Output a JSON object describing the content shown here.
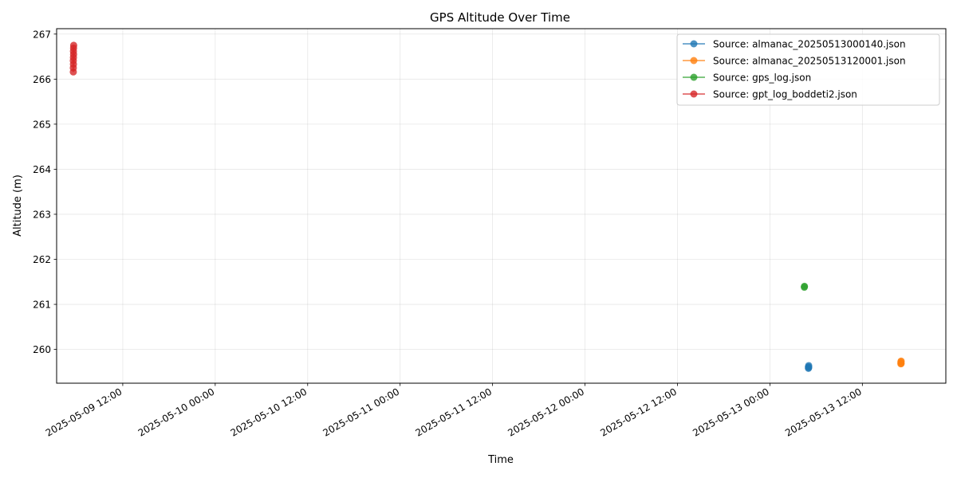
{
  "chart_data": {
    "type": "scatter",
    "title": "GPS Altitude Over Time",
    "xlabel": "Time",
    "ylabel": "Altitude (m)",
    "grid": true,
    "legend_position": "top-right",
    "xlim": [
      "2025-05-09 03:25",
      "2025-05-13 22:50"
    ],
    "ylim": [
      259.25,
      267.12
    ],
    "x_ticks": [
      {
        "value": "2025-05-09 12:00",
        "label": "2025-05-09 12:00"
      },
      {
        "value": "2025-05-10 00:00",
        "label": "2025-05-10 00:00"
      },
      {
        "value": "2025-05-10 12:00",
        "label": "2025-05-10 12:00"
      },
      {
        "value": "2025-05-11 00:00",
        "label": "2025-05-11 00:00"
      },
      {
        "value": "2025-05-11 12:00",
        "label": "2025-05-11 12:00"
      },
      {
        "value": "2025-05-12 00:00",
        "label": "2025-05-12 00:00"
      },
      {
        "value": "2025-05-12 12:00",
        "label": "2025-05-12 12:00"
      },
      {
        "value": "2025-05-13 00:00",
        "label": "2025-05-13 00:00"
      },
      {
        "value": "2025-05-13 12:00",
        "label": "2025-05-13 12:00"
      }
    ],
    "y_ticks": [
      260,
      261,
      262,
      263,
      264,
      265,
      266,
      267
    ],
    "series": [
      {
        "name": "Source: almanac_20250513000140.json",
        "color": "#1f77b4",
        "points": [
          {
            "x": "2025-05-13 05:00",
            "y": 259.58
          },
          {
            "x": "2025-05-13 05:00",
            "y": 259.61
          },
          {
            "x": "2025-05-13 05:02",
            "y": 259.64
          },
          {
            "x": "2025-05-13 05:02",
            "y": 259.6
          }
        ]
      },
      {
        "name": "Source: almanac_20250513120001.json",
        "color": "#ff7f0e",
        "points": [
          {
            "x": "2025-05-13 17:00",
            "y": 259.68
          },
          {
            "x": "2025-05-13 17:00",
            "y": 259.72
          },
          {
            "x": "2025-05-13 17:02",
            "y": 259.74
          },
          {
            "x": "2025-05-13 17:02",
            "y": 259.69
          }
        ]
      },
      {
        "name": "Source: gps_log.json",
        "color": "#2ca02c",
        "points": [
          {
            "x": "2025-05-13 04:28",
            "y": 261.38
          },
          {
            "x": "2025-05-13 04:29",
            "y": 261.4
          }
        ]
      },
      {
        "name": "Source: gpt_log_boddeti2.json",
        "color": "#d62728",
        "points": [
          {
            "x": "2025-05-09 05:35",
            "y": 266.16
          },
          {
            "x": "2025-05-09 05:35",
            "y": 266.25
          },
          {
            "x": "2025-05-09 05:36",
            "y": 266.33
          },
          {
            "x": "2025-05-09 05:35",
            "y": 266.41
          },
          {
            "x": "2025-05-09 05:36",
            "y": 266.48
          },
          {
            "x": "2025-05-09 05:37",
            "y": 266.55
          },
          {
            "x": "2025-05-09 05:36",
            "y": 266.62
          },
          {
            "x": "2025-05-09 05:37",
            "y": 266.69
          },
          {
            "x": "2025-05-09 05:38",
            "y": 266.75
          }
        ]
      }
    ]
  }
}
